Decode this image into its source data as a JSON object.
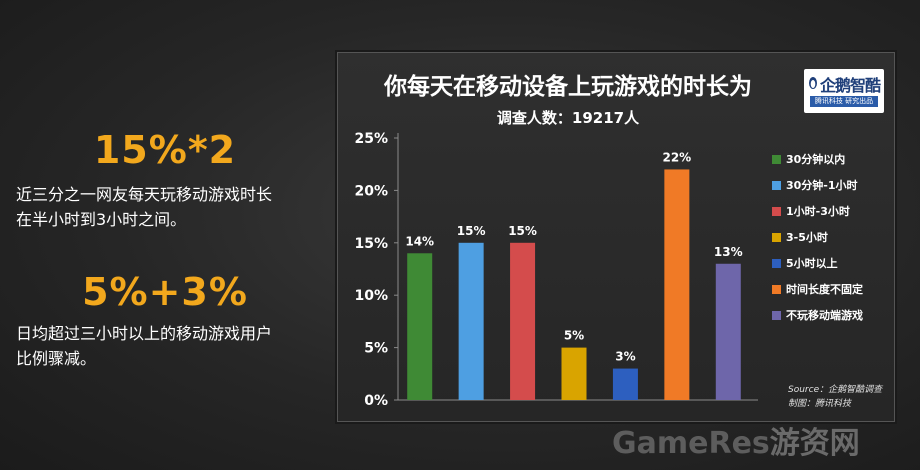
{
  "left": {
    "stat1": "15%*2",
    "desc1_line1": "近三分之一网友每天玩移动游戏时长",
    "desc1_line2": "在半小时到3小时之间。",
    "stat2": "5%+3%",
    "desc2_line1": "日均超过三小时以上的移动游戏用户",
    "desc2_line2": "比例骤减。"
  },
  "logo": {
    "name": "企鹅智酷",
    "tagline": "腾讯科技 研究出品"
  },
  "source": {
    "line1": "Source：企鹅智酷调查",
    "line2": "制图：腾讯科技"
  },
  "watermark": {
    "latin": "GameRes",
    "chinese": "游资网"
  },
  "chart_data": {
    "type": "bar",
    "title": "你每天在移动设备上玩游戏的时长为",
    "subtitle": "调查人数：19217人",
    "categories": [
      "30分钟以内",
      "30分钟-1小时",
      "1小时-3小时",
      "3-5小时",
      "5小时以上",
      "时间长度不固定",
      "不玩移动端游戏"
    ],
    "values": [
      14,
      15,
      15,
      5,
      3,
      22,
      13
    ],
    "value_labels": [
      "14%",
      "15%",
      "15%",
      "5%",
      "3%",
      "22%",
      "13%"
    ],
    "colors": [
      "#3f8a35",
      "#4e9fe2",
      "#d44c4c",
      "#d9a400",
      "#2d5fbf",
      "#f07a26",
      "#6e66aa"
    ],
    "ylim": [
      0,
      25
    ],
    "yticks": [
      0,
      5,
      10,
      15,
      20,
      25
    ],
    "ytick_labels": [
      "0%",
      "5%",
      "10%",
      "15%",
      "20%",
      "25%"
    ],
    "grid": false,
    "legend_position": "right"
  }
}
